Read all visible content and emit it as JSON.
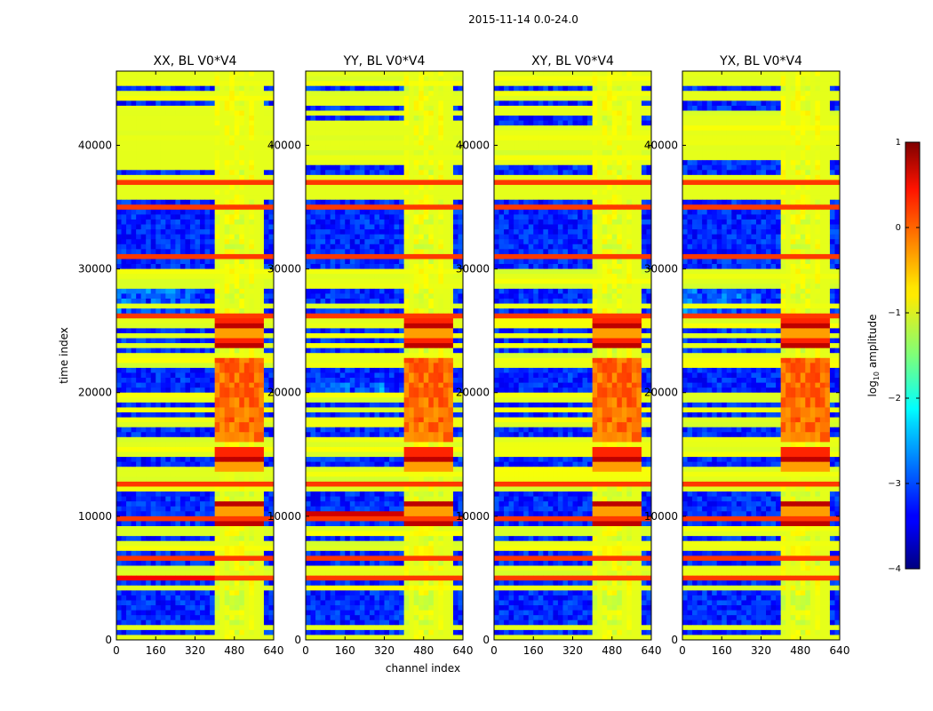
{
  "figure": {
    "suptitle": "2015-11-14 0.0-24.0"
  },
  "chart_data": {
    "type": "heatmap",
    "xlabel": "channel index",
    "ylabel": "time index",
    "xlim": [
      0,
      640
    ],
    "ylim": [
      0,
      46000
    ],
    "xticks": [
      0,
      160,
      320,
      480,
      640
    ],
    "xtick_labels": [
      "0",
      "160",
      "320",
      "480",
      "640"
    ],
    "yticks": [
      0,
      10000,
      20000,
      30000,
      40000
    ],
    "ytick_labels": [
      "0",
      "10000",
      "20000",
      "30000",
      "40000"
    ],
    "panels": [
      {
        "title": "XX, BL V0*V4",
        "pol": "XX"
      },
      {
        "title": "YY, BL V0*V4",
        "pol": "YY"
      },
      {
        "title": "XY, BL V0*V4",
        "pol": "XY"
      },
      {
        "title": "YX, BL V0*V4",
        "pol": "YX"
      }
    ],
    "colorbar": {
      "label_main": "log",
      "label_sub": "10",
      "label_rest": " amplitude",
      "range": [
        -4,
        1
      ],
      "ticks": [
        1,
        0,
        -1,
        -2,
        -3,
        -4
      ],
      "tick_labels": [
        "1",
        "0",
        "−1",
        "−2",
        "−3",
        "−4"
      ],
      "colormap": "jet"
    },
    "features": {
      "band_channels": [
        410,
        600
      ],
      "rfi_block_time": [
        35800,
        37400
      ],
      "hot_rows_time": [
        4900,
        6700,
        9700,
        12500,
        26200,
        30000,
        31000,
        33200,
        35000,
        37000
      ],
      "strong_blocks_time": [
        [
          9300,
          11300
        ],
        [
          23800,
          26000
        ],
        [
          13500,
          15500
        ]
      ]
    }
  }
}
